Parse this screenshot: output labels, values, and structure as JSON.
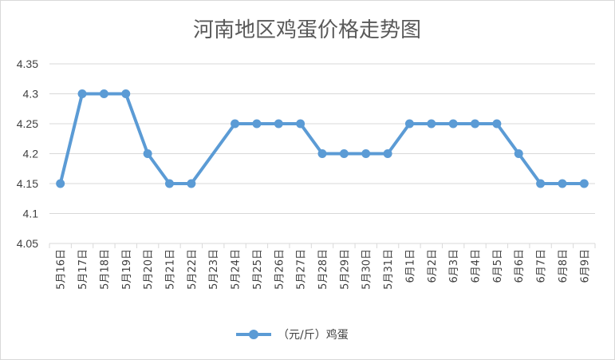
{
  "chart_data": {
    "type": "line",
    "title": "河南地区鸡蛋价格走势图",
    "xlabel": "",
    "ylabel": "",
    "ylim": [
      4.05,
      4.35
    ],
    "yticks": [
      "4.05",
      "4.1",
      "4.15",
      "4.2",
      "4.25",
      "4.3",
      "4.35"
    ],
    "grid": true,
    "legend_position": "bottom",
    "categories": [
      "5月16日",
      "5月17日",
      "5月18日",
      "5月19日",
      "5月20日",
      "5月21日",
      "5月22日",
      "5月23日",
      "5月24日",
      "5月25日",
      "5月26日",
      "5月27日",
      "5月28日",
      "5月29日",
      "5月30日",
      "5月31日",
      "6月1日",
      "6月2日",
      "6月3日",
      "6月4日",
      "6月5日",
      "6月6日",
      "6月7日",
      "6月8日",
      "6月9日"
    ],
    "series": [
      {
        "name": "（元/斤）鸡蛋",
        "color": "#5b9bd5",
        "values": [
          4.15,
          4.3,
          4.3,
          4.3,
          4.2,
          4.15,
          4.15,
          null,
          4.25,
          4.25,
          4.25,
          4.25,
          4.2,
          4.2,
          4.2,
          4.2,
          4.25,
          4.25,
          4.25,
          4.25,
          4.25,
          4.2,
          4.15,
          4.15,
          4.15
        ]
      }
    ]
  }
}
